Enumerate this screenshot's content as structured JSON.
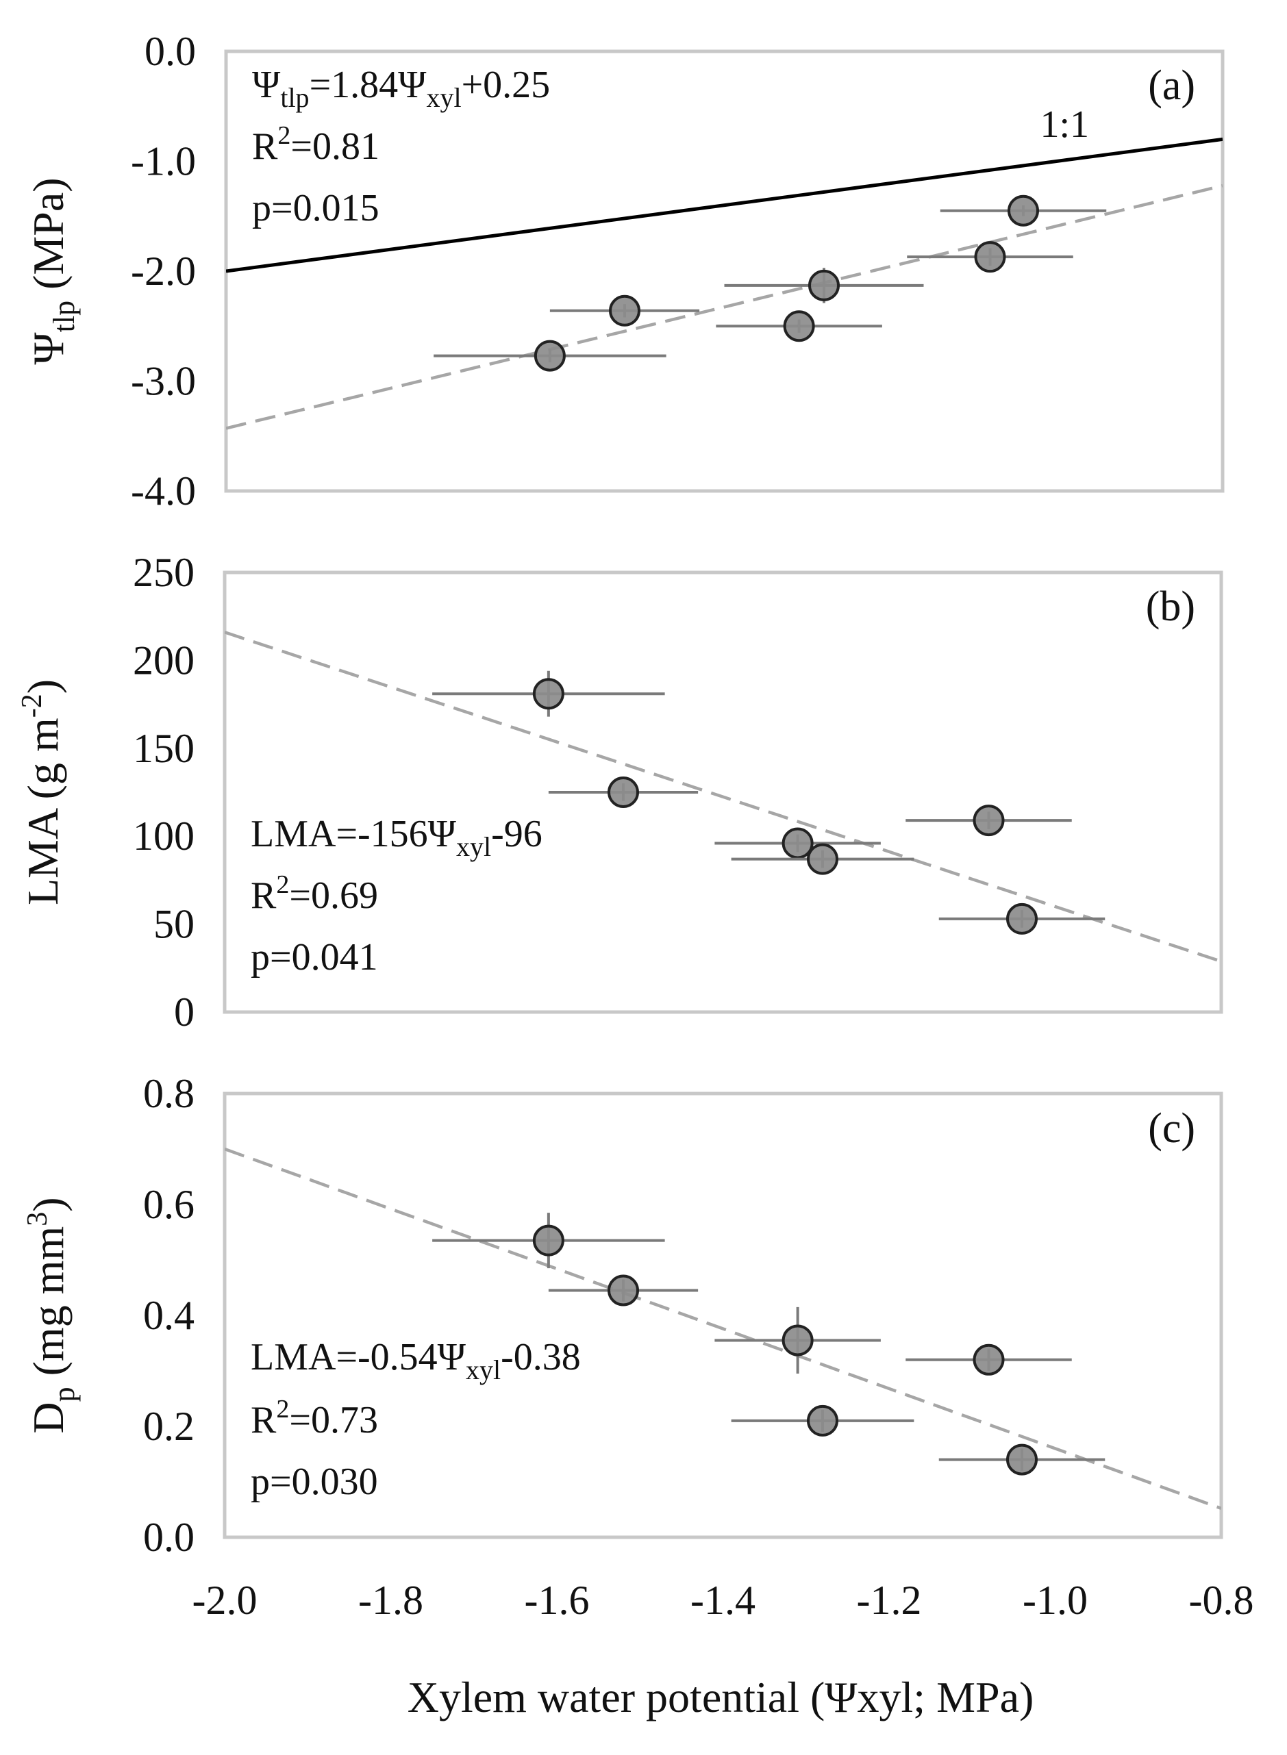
{
  "colors": {
    "point_fill": "#8c8c8c",
    "point_stroke": "#222222",
    "error_bar": "#7a7a7a",
    "fit_line": "#a6a6a6",
    "one_to_one_line": "#000000",
    "frame": "#c8c8c8"
  },
  "chart_data": [
    {
      "type": "scatter",
      "panel_label": "(a)",
      "ylabel_main": "Ψ",
      "ylabel_sub": "tlp",
      "ylabel_rest": " (MPa)",
      "xlim": [
        -2.0,
        -0.8
      ],
      "ylim": [
        -4.0,
        0.0
      ],
      "yticks": [
        "0.0",
        "-1.0",
        "-2.0",
        "-3.0",
        "-4.0"
      ],
      "ytick_values": [
        0.0,
        -1.0,
        -2.0,
        -3.0,
        -4.0
      ],
      "grid": false,
      "equation": {
        "lhs_main": "Ψ",
        "lhs_sub": "tlp",
        "mid": "=1.84Ψ",
        "mid_sub": "xyl",
        "rhs": "+0.25"
      },
      "r2": {
        "prefix": "R",
        "sup": "2",
        "value": "=0.81"
      },
      "p": "p=0.015",
      "fit": {
        "slope": 1.84,
        "intercept": 0.25
      },
      "reference_line": {
        "label": "1:1",
        "slope": 1,
        "intercept": 0
      },
      "points": [
        {
          "x": -1.61,
          "y": -2.77,
          "xerr": 0.14,
          "yerr": 0.06
        },
        {
          "x": -1.52,
          "y": -2.36,
          "xerr": 0.09,
          "yerr": 0.06
        },
        {
          "x": -1.31,
          "y": -2.5,
          "xerr": 0.1,
          "yerr": 0.06
        },
        {
          "x": -1.28,
          "y": -2.13,
          "xerr": 0.12,
          "yerr": 0.16
        },
        {
          "x": -1.08,
          "y": -1.87,
          "xerr": 0.1,
          "yerr": 0.08
        },
        {
          "x": -1.04,
          "y": -1.45,
          "xerr": 0.1,
          "yerr": 0.05
        }
      ]
    },
    {
      "type": "scatter",
      "panel_label": "(b)",
      "ylabel_main": "LMA (g m",
      "ylabel_sup": "-2",
      "ylabel_rest": ")",
      "xlim": [
        -2.0,
        -0.8
      ],
      "ylim": [
        0,
        250
      ],
      "yticks": [
        "250",
        "200",
        "150",
        "100",
        "50",
        "0"
      ],
      "ytick_values": [
        250,
        200,
        150,
        100,
        50,
        0
      ],
      "grid": false,
      "equation": {
        "lhs_main": "LMA",
        "mid": "=-156Ψ",
        "mid_sub": "xyl",
        "rhs": "-96"
      },
      "r2": {
        "prefix": "R",
        "sup": "2",
        "value": "=0.69"
      },
      "p": "p=0.041",
      "fit": {
        "slope": -156,
        "intercept": -96
      },
      "points": [
        {
          "x": -1.61,
          "y": 181,
          "xerr": 0.14,
          "yerr": 13
        },
        {
          "x": -1.52,
          "y": 125,
          "xerr": 0.09,
          "yerr": 5
        },
        {
          "x": -1.31,
          "y": 96,
          "xerr": 0.1,
          "yerr": 5
        },
        {
          "x": -1.28,
          "y": 87,
          "xerr": 0.11,
          "yerr": 5
        },
        {
          "x": -1.08,
          "y": 109,
          "xerr": 0.1,
          "yerr": 5
        },
        {
          "x": -1.04,
          "y": 53,
          "xerr": 0.1,
          "yerr": 5
        }
      ]
    },
    {
      "type": "scatter",
      "panel_label": "(c)",
      "ylabel_main": "D",
      "ylabel_sub": "p",
      "ylabel_rest": " (mg mm",
      "ylabel_sup": "3",
      "ylabel_end": ")",
      "xlim": [
        -2.0,
        -0.8
      ],
      "ylim": [
        0.0,
        0.8
      ],
      "yticks": [
        "0.8",
        "0.6",
        "0.4",
        "0.2",
        "0.0"
      ],
      "ytick_values": [
        0.8,
        0.6,
        0.4,
        0.2,
        0.0
      ],
      "xticks": [
        "-2.0",
        "-1.8",
        "-1.6",
        "-1.4",
        "-1.2",
        "-1.0",
        "-0.8"
      ],
      "xtick_values": [
        -2.0,
        -1.8,
        -1.6,
        -1.4,
        -1.2,
        -1.0,
        -0.8
      ],
      "xlabel": "Xylem water potential (Ψxyl; MPa)",
      "grid": false,
      "equation": {
        "lhs_main": "LMA",
        "mid": "=-0.54Ψ",
        "mid_sub": "xyl",
        "rhs": "-0.38"
      },
      "r2": {
        "prefix": "R",
        "sup": "2",
        "value": "=0.73"
      },
      "p": "p=0.030",
      "fit": {
        "slope": -0.54,
        "intercept": -0.38
      },
      "points": [
        {
          "x": -1.61,
          "y": 0.535,
          "xerr": 0.14,
          "yerr": 0.05
        },
        {
          "x": -1.52,
          "y": 0.445,
          "xerr": 0.09,
          "yerr": 0.02
        },
        {
          "x": -1.31,
          "y": 0.355,
          "xerr": 0.1,
          "yerr": 0.06
        },
        {
          "x": -1.28,
          "y": 0.21,
          "xerr": 0.11,
          "yerr": 0.02
        },
        {
          "x": -1.08,
          "y": 0.32,
          "xerr": 0.1,
          "yerr": 0.02
        },
        {
          "x": -1.04,
          "y": 0.14,
          "xerr": 0.1,
          "yerr": 0.02
        }
      ]
    }
  ]
}
